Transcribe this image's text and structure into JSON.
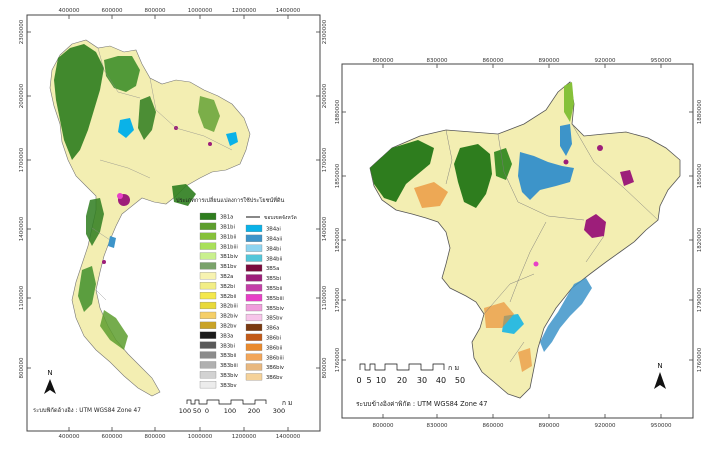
{
  "left_map": {
    "top_x_ticks": [
      "400000",
      "600000",
      "800000",
      "1000000",
      "1200000",
      "1400000"
    ],
    "bottom_x_ticks": [
      "400000",
      "600000",
      "800000",
      "1000000",
      "1200000",
      "1400000"
    ],
    "left_y_ticks": [
      "2300000",
      "2000000",
      "1700000",
      "1400000",
      "1100000",
      "800000"
    ],
    "right_y_ticks": [
      "2300000",
      "2000000",
      "1700000",
      "1400000",
      "1100000",
      "800000"
    ],
    "legend_title": "ประเภทการเปลี่ยนแปลงการใช้ประโยชน์ที่ดิน",
    "boundary_label": "ขอบเขตจังหวัด",
    "legend_col1": [
      {
        "code": "3B1a",
        "color": "#2e7d1e"
      },
      {
        "code": "3B1bi",
        "color": "#5d9e2e"
      },
      {
        "code": "3B1bii",
        "color": "#86c13a"
      },
      {
        "code": "3B1biii",
        "color": "#a9e05a"
      },
      {
        "code": "3B1biv",
        "color": "#c9f08e"
      },
      {
        "code": "3B1bv",
        "color": "#7aa36b"
      },
      {
        "code": "3B2a",
        "color": "#f7f3b0"
      },
      {
        "code": "3B2bi",
        "color": "#f2ee86"
      },
      {
        "code": "3B2bii",
        "color": "#f4e84c"
      },
      {
        "code": "3B2biii",
        "color": "#e8d93a"
      },
      {
        "code": "3B2biv",
        "color": "#f5cf68"
      },
      {
        "code": "3B2bv",
        "color": "#c9a326"
      },
      {
        "code": "3B3a",
        "color": "#1c1c1c"
      },
      {
        "code": "3B3bi",
        "color": "#5a5a5a"
      },
      {
        "code": "3B3bii",
        "color": "#8c8c8c"
      },
      {
        "code": "3B3biii",
        "color": "#b0b0b0"
      },
      {
        "code": "3B3biv",
        "color": "#d2d2d2"
      },
      {
        "code": "3B3bv",
        "color": "#ececec"
      }
    ],
    "legend_col2": [
      {
        "code": "3B4ai",
        "color": "#0ab2e8"
      },
      {
        "code": "3B4aii",
        "color": "#3d94c9"
      },
      {
        "code": "3B4bi",
        "color": "#8ed4f0"
      },
      {
        "code": "3B4bii",
        "color": "#53c6d9"
      },
      {
        "code": "3B5a",
        "color": "#7a0a3c"
      },
      {
        "code": "3B5bi",
        "color": "#9d1e7a"
      },
      {
        "code": "3B5bii",
        "color": "#c43ea8"
      },
      {
        "code": "3B5biii",
        "color": "#e83fc7"
      },
      {
        "code": "3B5biv",
        "color": "#f09ddc"
      },
      {
        "code": "3B5bv",
        "color": "#f7c5ea"
      },
      {
        "code": "3B6a",
        "color": "#7a3a10"
      },
      {
        "code": "3B6bi",
        "color": "#c25a18"
      },
      {
        "code": "3B6bii",
        "color": "#e98a2e"
      },
      {
        "code": "3B6biii",
        "color": "#f2a65a"
      },
      {
        "code": "3B6biv",
        "color": "#e8b880"
      },
      {
        "code": "3B6bv",
        "color": "#f5d29a"
      }
    ],
    "north_label": "N",
    "scale_numbers": [
      "100",
      "50",
      "0",
      "100",
      "200",
      "300"
    ],
    "scale_unit": "ก ม",
    "crs_text": "ระบบพิกัดอ้างอิง : UTM WGS84 Zone 47"
  },
  "right_map": {
    "top_x_ticks": [
      "800000",
      "830000",
      "860000",
      "890000",
      "920000",
      "950000"
    ],
    "bottom_x_ticks": [
      "800000",
      "830000",
      "860000",
      "890000",
      "920000",
      "950000"
    ],
    "left_y_ticks": [
      "1880000",
      "1850000",
      "1820000",
      "1790000",
      "1760000"
    ],
    "right_y_ticks": [
      "1880000",
      "1850000",
      "1820000",
      "1790000",
      "1760000"
    ],
    "north_label": "N",
    "scale_numbers": [
      "0",
      "5",
      "10",
      "20",
      "30",
      "40",
      "50"
    ],
    "scale_unit": "ก ม",
    "crs_text": "ระบบข้างอิงค่าพิกัด : UTM WGS84 Zone 47"
  },
  "colors": {
    "agriculture": "#f3eeb2",
    "forest": "#2e7d1e",
    "water": "#3d94c9",
    "urban": "#9d1e7a",
    "orange": "#e98a2e",
    "border": "#555555"
  }
}
